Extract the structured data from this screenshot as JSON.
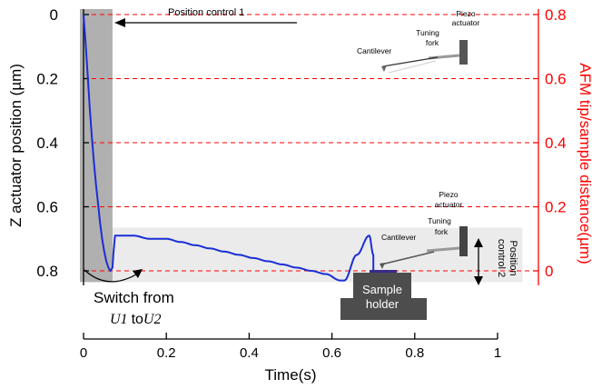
{
  "chart_data": {
    "type": "line",
    "xlabel": "Time(s)",
    "ylabel_left": "Z actuator position (µm)",
    "ylabel_right": "AFM tip/sample distance(µm)",
    "xlim": [
      0,
      1
    ],
    "ylim_left": [
      0,
      0.8
    ],
    "ylim_left_inverted": true,
    "ylim_right": [
      0,
      0.8
    ],
    "x_ticks": [
      0,
      0.2,
      0.4,
      0.6,
      0.8,
      1
    ],
    "x_tick_labels": [
      "0",
      "0.2",
      "0.4",
      "0.6",
      "0.8",
      "1"
    ],
    "y_left_ticks": [
      0,
      0.2,
      0.4,
      0.6,
      0.8
    ],
    "y_left_tick_labels": [
      "0",
      "0.2",
      "0.4",
      "0.6",
      "0.8"
    ],
    "y_right_ticks": [
      0.8,
      0.6,
      0.4,
      0.2,
      0
    ],
    "y_right_tick_labels": [
      "0.8",
      "0.6",
      "0.4",
      "0.2",
      "0"
    ],
    "right_axis_color": "#ff0000",
    "gridlines": "red dashed horizontal lines at right-axis ticks",
    "series": [
      {
        "color": "#1a2fd6",
        "x": [
          0,
          0.005,
          0.01,
          0.015,
          0.02,
          0.025,
          0.03,
          0.035,
          0.04,
          0.045,
          0.05,
          0.055,
          0.06,
          0.065,
          0.07,
          0.072,
          0.076,
          0.09,
          0.12,
          0.16,
          0.2,
          0.235,
          0.27,
          0.305,
          0.34,
          0.375,
          0.41,
          0.445,
          0.48,
          0.515,
          0.55,
          0.585,
          0.62,
          0.63,
          0.66,
          0.69,
          0.7,
          0.7
        ],
        "y": [
          0,
          0.09,
          0.19,
          0.29,
          0.38,
          0.46,
          0.53,
          0.59,
          0.65,
          0.7,
          0.74,
          0.77,
          0.79,
          0.8,
          0.79,
          0.75,
          0.69,
          0.69,
          0.69,
          0.7,
          0.7,
          0.71,
          0.72,
          0.73,
          0.74,
          0.75,
          0.76,
          0.77,
          0.78,
          0.79,
          0.8,
          0.81,
          0.83,
          0.83,
          0.75,
          0.69,
          0.75,
          0.8
        ]
      }
    ],
    "shaded_regions": [
      {
        "x": [
          0,
          0.07
        ],
        "y_left": [
          0,
          0.835
        ],
        "color": "#b0b0b0"
      },
      {
        "x": [
          0,
          1.06
        ],
        "y_left": [
          0.665,
          0.835
        ],
        "color": "#ebebeb"
      }
    ],
    "annotations": {
      "position_control_1": "Position control 1",
      "position_control_2_line1": "Position",
      "position_control_2_line2": "control 2",
      "switch_line1": "Switch from",
      "switch_u1": "U1",
      "switch_to": "to",
      "switch_u2": "U2",
      "sample_holder_line1": "Sample",
      "sample_holder_line2": "holder",
      "upper_diagram": {
        "piezo_line1": "Piezo",
        "piezo_line2": "actuator",
        "tuning_line1": "Tuning",
        "tuning_line2": "fork",
        "cantilever": "Cantilever"
      },
      "lower_diagram": {
        "piezo_line1": "Piezo",
        "piezo_line2": "actuator",
        "tuning_line1": "Tuning",
        "tuning_line2": "fork",
        "cantilever": "Cantilever"
      }
    }
  }
}
